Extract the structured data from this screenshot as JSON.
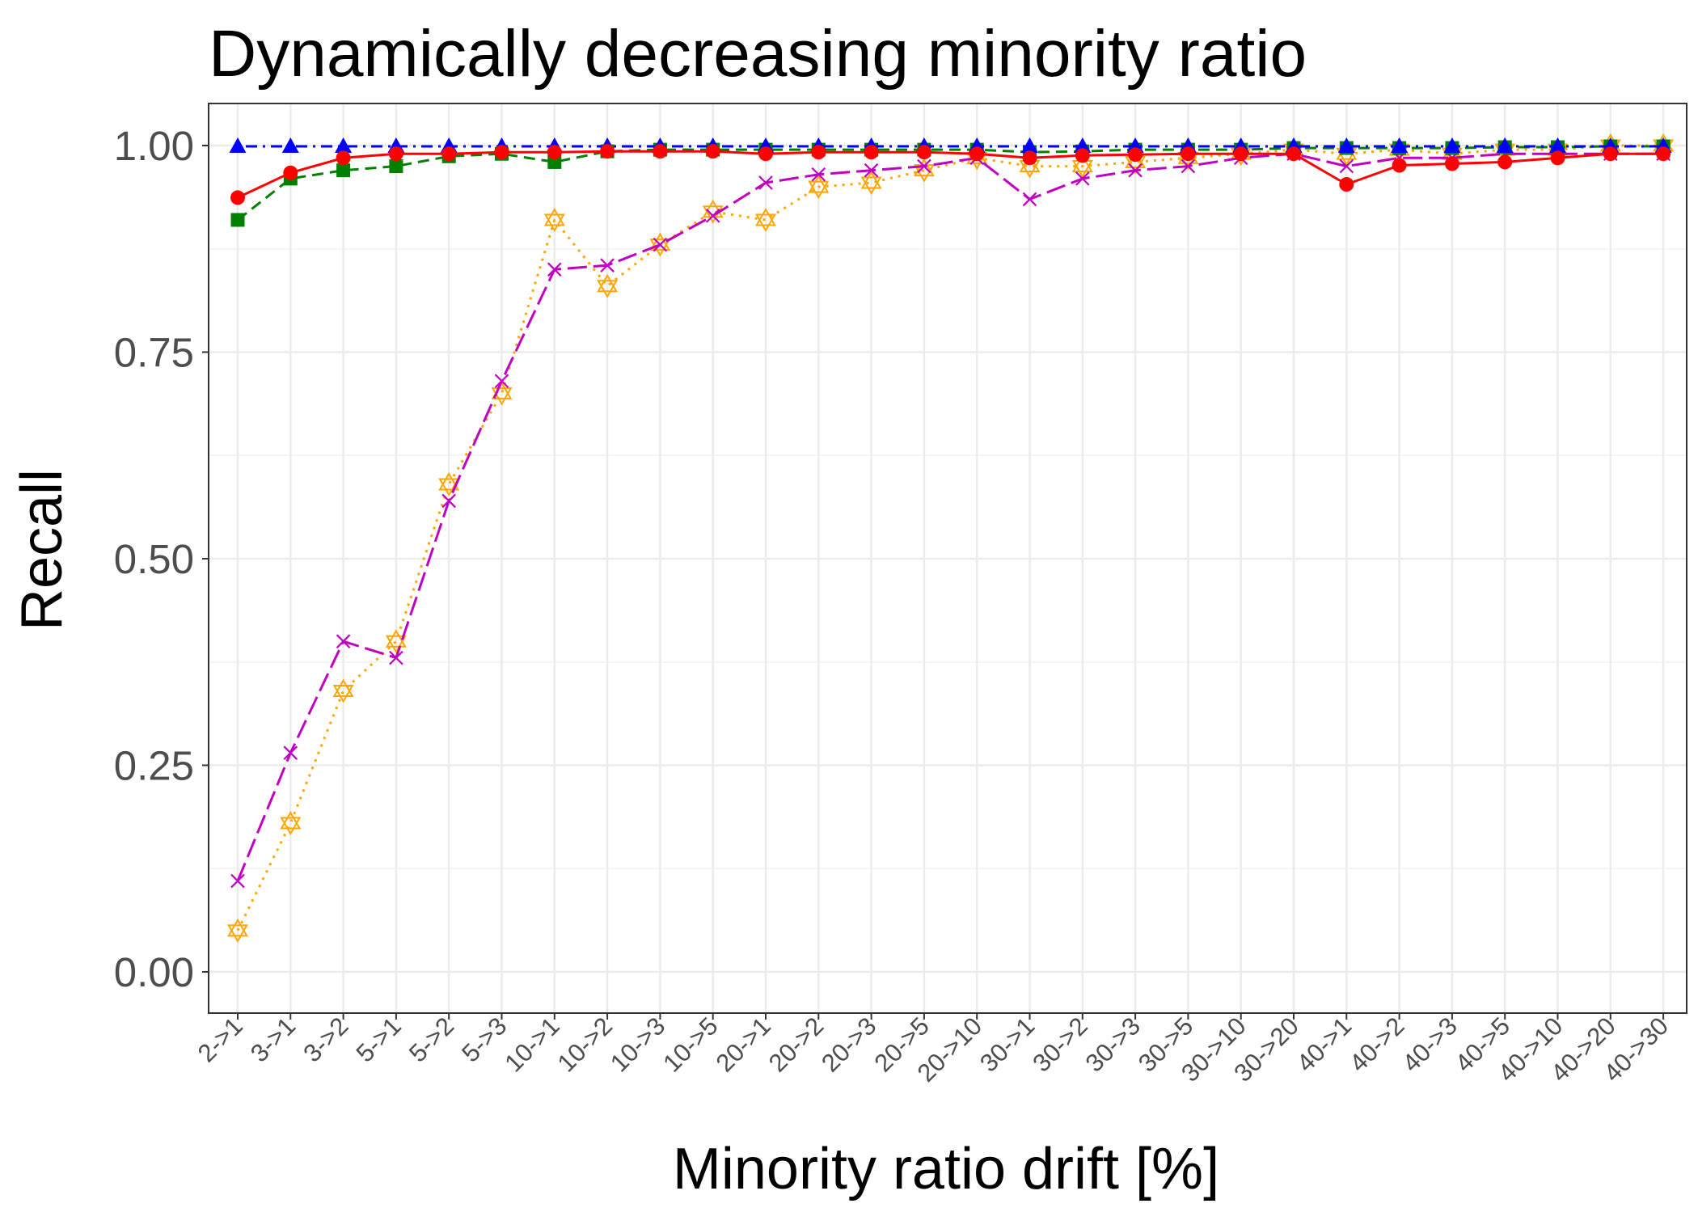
{
  "chart_data": {
    "type": "line",
    "title": "Dynamically decreasing minority ratio",
    "xlabel": "Minority ratio drift [%]",
    "ylabel": "Recall",
    "ylim": [
      -0.05,
      1.05
    ],
    "yticks": [
      "0.00",
      "0.25",
      "0.50",
      "0.75",
      "1.00"
    ],
    "ytick_values": [
      0,
      0.25,
      0.5,
      0.75,
      1.0
    ],
    "grid": true,
    "legend": "none",
    "categories": [
      "2->1",
      "3->1",
      "3->2",
      "5->1",
      "5->2",
      "5->3",
      "10->1",
      "10->2",
      "10->3",
      "10->5",
      "20->1",
      "20->2",
      "20->3",
      "20->5",
      "20->10",
      "30->1",
      "30->2",
      "30->3",
      "30->5",
      "30->10",
      "30->20",
      "40->1",
      "40->2",
      "40->3",
      "40->5",
      "40->10",
      "40->20",
      "40->30"
    ],
    "series": [
      {
        "color": "#FFA500",
        "dash": "dotted",
        "marker": "star-of-david",
        "values": [
          0.05,
          0.18,
          0.34,
          0.4,
          0.59,
          0.7,
          0.91,
          0.83,
          0.88,
          0.92,
          0.91,
          0.95,
          0.955,
          0.97,
          0.985,
          0.975,
          0.975,
          0.98,
          0.985,
          0.99,
          0.995,
          0.99,
          0.995,
          0.99,
          0.995,
          0.995,
          1.0,
          1.0
        ]
      },
      {
        "color": "#C000C0",
        "dash": "longdash",
        "marker": "x",
        "values": [
          0.11,
          0.265,
          0.4,
          0.38,
          0.57,
          0.715,
          0.85,
          0.855,
          0.88,
          0.915,
          0.955,
          0.965,
          0.97,
          0.975,
          0.985,
          0.935,
          0.96,
          0.97,
          0.975,
          0.985,
          0.99,
          0.975,
          0.985,
          0.985,
          0.99,
          0.99,
          0.99,
          0.99
        ]
      },
      {
        "color": "#008000",
        "dash": "dashed",
        "marker": "square",
        "values": [
          0.91,
          0.96,
          0.97,
          0.975,
          0.987,
          0.99,
          0.98,
          0.993,
          0.995,
          0.995,
          0.995,
          0.995,
          0.995,
          0.995,
          0.995,
          0.992,
          0.993,
          0.995,
          0.995,
          0.995,
          0.997,
          0.997,
          0.997,
          0.997,
          0.998,
          0.998,
          0.999,
          0.999
        ]
      },
      {
        "color": "#0000FF",
        "dash": "dotdash",
        "marker": "triangle",
        "values": [
          0.999,
          0.999,
          0.999,
          0.999,
          0.999,
          0.999,
          0.999,
          0.999,
          0.999,
          0.999,
          0.999,
          0.999,
          0.999,
          0.999,
          0.999,
          0.999,
          0.999,
          0.999,
          0.999,
          0.999,
          0.999,
          0.999,
          0.999,
          0.999,
          0.999,
          0.999,
          0.999,
          0.999
        ]
      },
      {
        "color": "#FF0000",
        "dash": "solid",
        "marker": "circle",
        "values": [
          0.937,
          0.967,
          0.985,
          0.99,
          0.99,
          0.992,
          0.992,
          0.993,
          0.993,
          0.993,
          0.99,
          0.992,
          0.992,
          0.992,
          0.99,
          0.985,
          0.988,
          0.989,
          0.99,
          0.99,
          0.99,
          0.953,
          0.976,
          0.978,
          0.98,
          0.985,
          0.99,
          0.99
        ]
      }
    ]
  }
}
